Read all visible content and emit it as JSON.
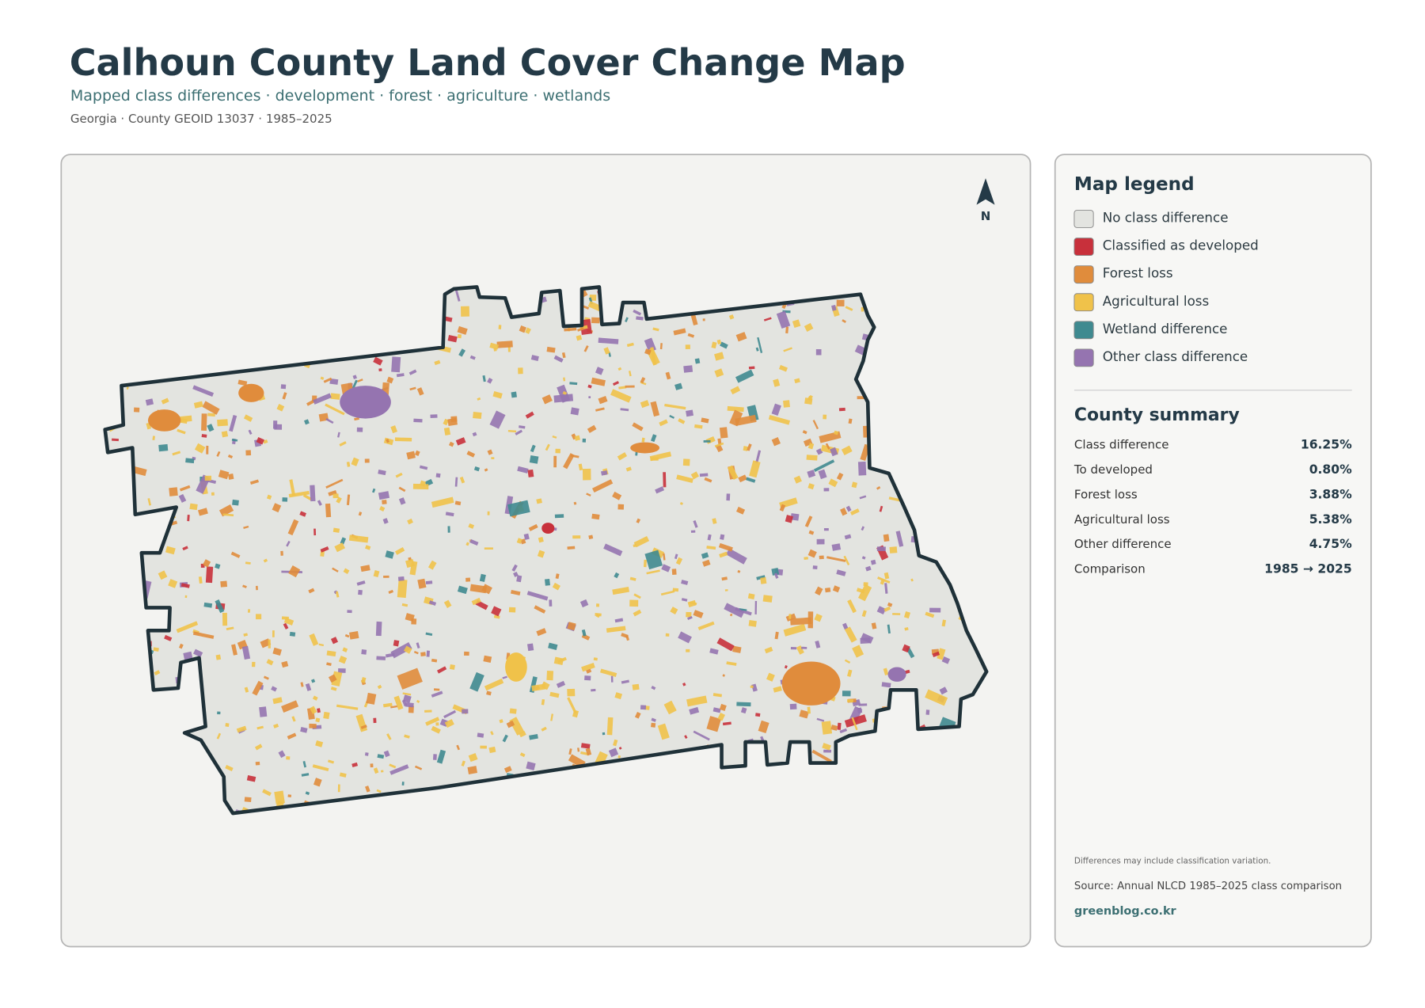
{
  "header": {
    "title": "Calhoun County Land Cover Change Map",
    "subtitle": "Mapped class differences · development · forest · agriculture · wetlands",
    "meta": "Georgia · County GEOID 13037 · 1985–2025"
  },
  "map": {
    "north_label": "N"
  },
  "legend": {
    "title": "Map legend",
    "items": [
      {
        "label": "No class difference",
        "color": "#e3e4e0"
      },
      {
        "label": "Classified as developed",
        "color": "#c8303b"
      },
      {
        "label": "Forest loss",
        "color": "#e08c3c"
      },
      {
        "label": "Agricultural loss",
        "color": "#f0c24a"
      },
      {
        "label": "Wetland difference",
        "color": "#3f8a90"
      },
      {
        "label": "Other class difference",
        "color": "#9574b0"
      }
    ]
  },
  "summary": {
    "title": "County summary",
    "rows": [
      {
        "label": "Class difference",
        "value": "16.25%"
      },
      {
        "label": "To developed",
        "value": "0.80%"
      },
      {
        "label": "Forest loss",
        "value": "3.88%"
      },
      {
        "label": "Agricultural loss",
        "value": "5.38%"
      },
      {
        "label": "Other difference",
        "value": "4.75%"
      },
      {
        "label": "Comparison",
        "value": "1985 → 2025"
      }
    ]
  },
  "footer": {
    "note": "Differences may include classification variation.",
    "source": "Source: Annual NLCD 1985–2025 class comparison",
    "link": "greenblog.co.kr"
  }
}
